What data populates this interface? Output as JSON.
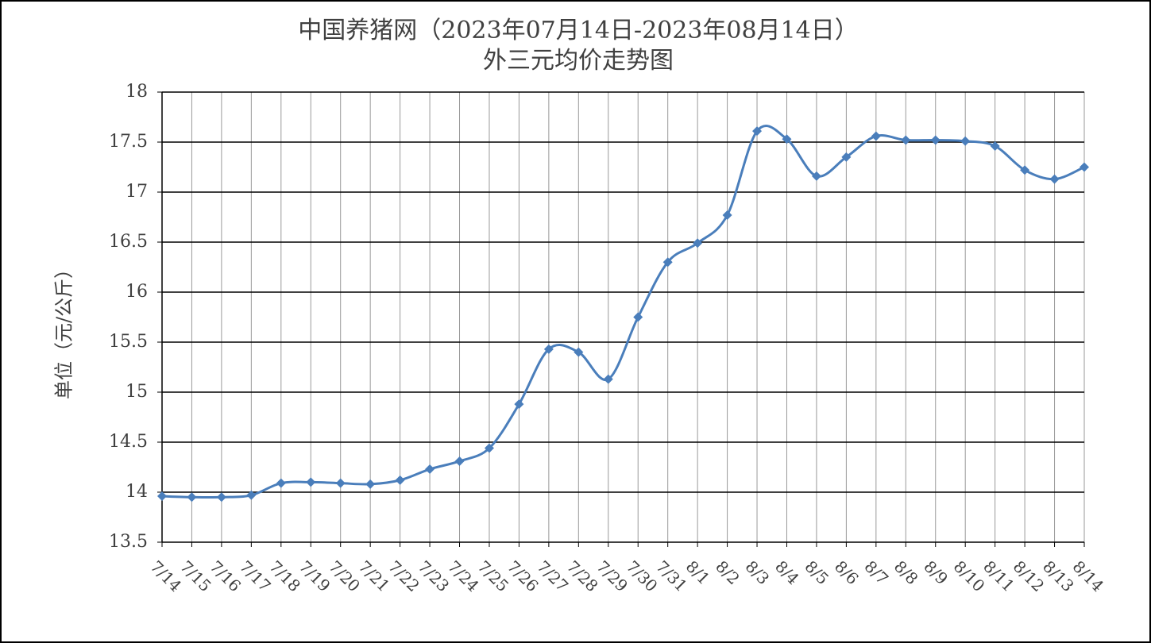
{
  "chart_data": {
    "type": "line",
    "title": "中国养猪网（2023年07月14日-2023年08月14日）",
    "subtitle": "外三元均价走势图",
    "y_label": "单位（元/公斤）",
    "categories": [
      "7/14",
      "7/15",
      "7/16",
      "7/17",
      "7/18",
      "7/19",
      "7/20",
      "7/21",
      "7/22",
      "7/23",
      "7/24",
      "7/25",
      "7/26",
      "7/27",
      "7/28",
      "7/29",
      "7/30",
      "7/31",
      "8/1",
      "8/2",
      "8/3",
      "8/4",
      "8/5",
      "8/6",
      "8/7",
      "8/8",
      "8/9",
      "8/10",
      "8/11",
      "8/12",
      "8/13",
      "8/14"
    ],
    "series": [
      {
        "name": "外三元",
        "color": "#4a7ebb",
        "values": [
          13.96,
          13.95,
          13.95,
          13.97,
          14.09,
          14.1,
          14.09,
          14.08,
          14.12,
          14.23,
          14.31,
          14.44,
          14.88,
          15.43,
          15.4,
          15.13,
          15.75,
          16.3,
          16.49,
          16.77,
          17.61,
          17.53,
          17.16,
          17.35,
          17.56,
          17.52,
          17.52,
          17.51,
          17.46,
          17.22,
          17.13,
          17.25
        ]
      }
    ],
    "ylim": [
      13.5,
      18
    ],
    "yticks": [
      13.5,
      14,
      14.5,
      15,
      15.5,
      16,
      16.5,
      17,
      17.5,
      18
    ],
    "grid": true,
    "smooth": true
  }
}
